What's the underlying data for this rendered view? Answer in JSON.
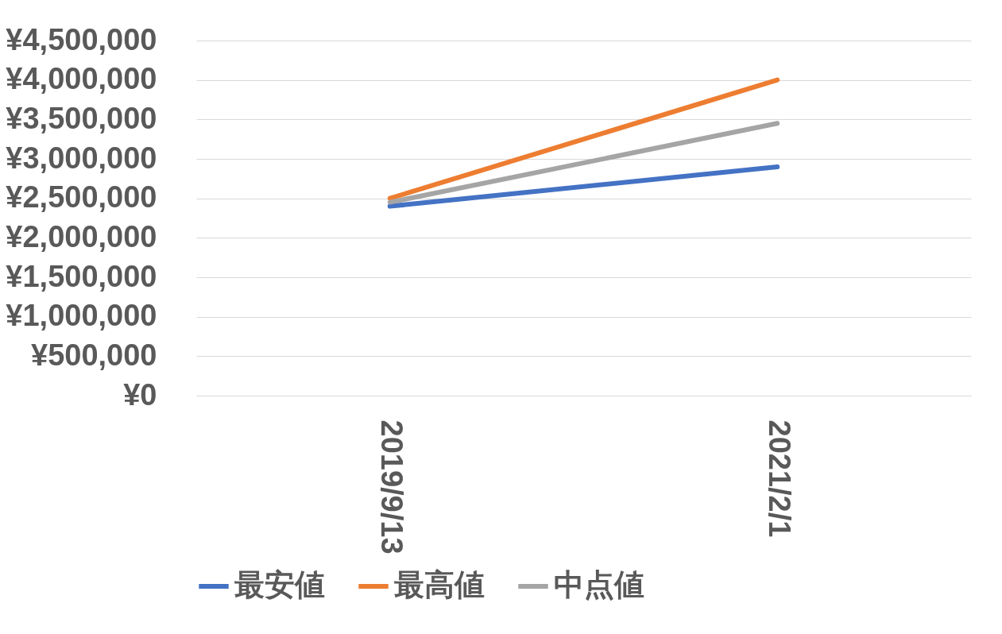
{
  "chart_data": {
    "type": "line",
    "categories": [
      "2019/9/13",
      "2021/2/1"
    ],
    "series": [
      {
        "name": "最安値",
        "color": "#4472c4",
        "values": [
          2400000,
          2900000
        ]
      },
      {
        "name": "最高値",
        "color": "#ed7d31",
        "values": [
          2500000,
          4000000
        ]
      },
      {
        "name": "中点値",
        "color": "#a5a5a5",
        "values": [
          2450000,
          3450000
        ]
      }
    ],
    "ylim": [
      0,
      4500000
    ],
    "yticks": [
      {
        "value": 0,
        "label": "¥0"
      },
      {
        "value": 500000,
        "label": "¥500,000"
      },
      {
        "value": 1000000,
        "label": "¥1,000,000"
      },
      {
        "value": 1500000,
        "label": "¥1,500,000"
      },
      {
        "value": 2000000,
        "label": "¥2,000,000"
      },
      {
        "value": 2500000,
        "label": "¥2,500,000"
      },
      {
        "value": 3000000,
        "label": "¥3,000,000"
      },
      {
        "value": 3500000,
        "label": "¥3,500,000"
      },
      {
        "value": 4000000,
        "label": "¥4,000,000"
      },
      {
        "value": 4500000,
        "label": "¥4,500,000"
      }
    ],
    "grid": "y",
    "legend": "bottom",
    "marker": "none"
  }
}
